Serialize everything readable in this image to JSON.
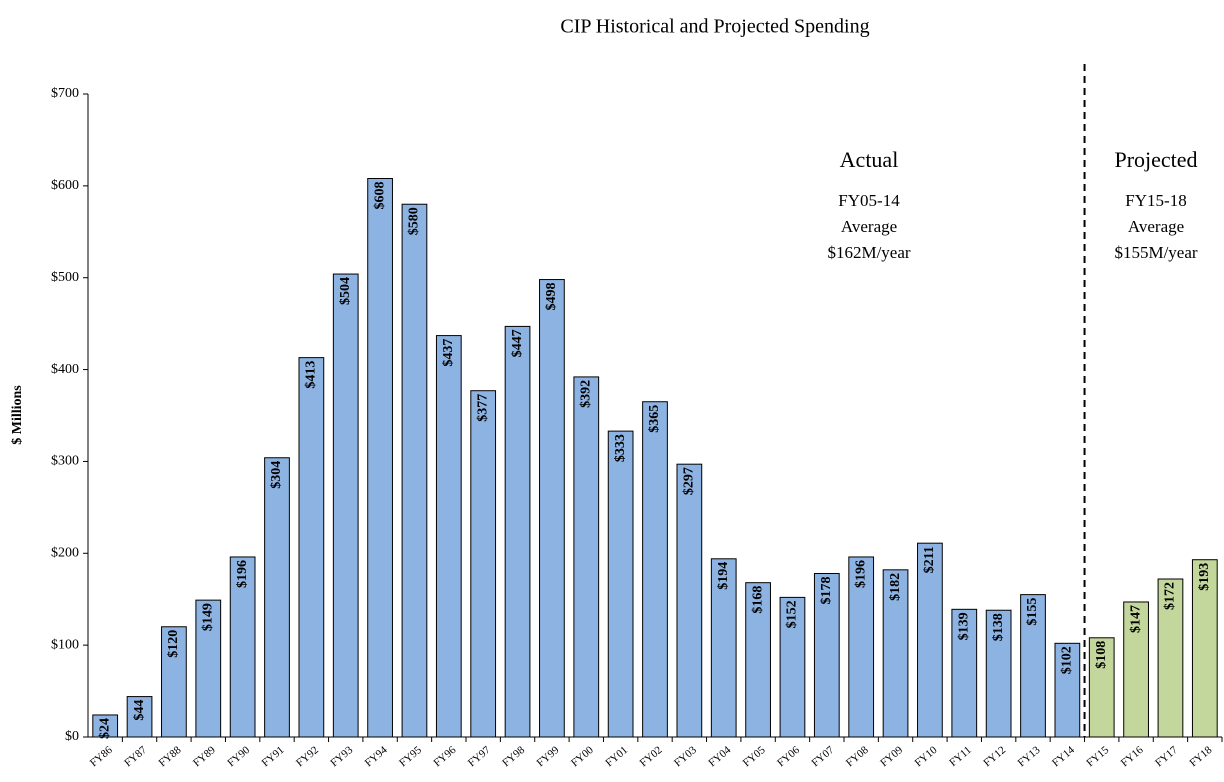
{
  "chart_data": {
    "type": "bar",
    "title": "CIP Historical and Projected Spending",
    "ylabel": "$ Millions",
    "categories": [
      "FY86",
      "FY87",
      "FY88",
      "FY89",
      "FY90",
      "FY91",
      "FY92",
      "FY93",
      "FY94",
      "FY95",
      "FY96",
      "FY97",
      "FY98",
      "FY99",
      "FY00",
      "FY01",
      "FY02",
      "FY03",
      "FY04",
      "FY05",
      "FY06",
      "FY07",
      "FY08",
      "FY09",
      "FY10",
      "FY11",
      "FY12",
      "FY13",
      "FY14",
      "FY15",
      "FY16",
      "FY17",
      "FY18"
    ],
    "values": [
      24,
      44,
      120,
      149,
      196,
      304,
      413,
      504,
      608,
      580,
      437,
      377,
      447,
      498,
      392,
      333,
      365,
      297,
      194,
      168,
      152,
      178,
      196,
      182,
      211,
      139,
      138,
      155,
      102,
      108,
      147,
      172,
      193
    ],
    "value_labels": [
      "$24",
      "$44",
      "$120",
      "$149",
      "$196",
      "$304",
      "$413",
      "$504",
      "$608",
      "$580",
      "$437",
      "$377",
      "$447",
      "$498",
      "$392",
      "$333",
      "$365",
      "$297",
      "$194",
      "$168",
      "$152",
      "$178",
      "$196",
      "$182",
      "$211",
      "$139",
      "$138",
      "$155",
      "$102",
      "$108",
      "$147",
      "$172",
      "$193"
    ],
    "colors": [
      "#8db3e2",
      "#8db3e2",
      "#8db3e2",
      "#8db3e2",
      "#8db3e2",
      "#8db3e2",
      "#8db3e2",
      "#8db3e2",
      "#8db3e2",
      "#8db3e2",
      "#8db3e2",
      "#8db3e2",
      "#8db3e2",
      "#8db3e2",
      "#8db3e2",
      "#8db3e2",
      "#8db3e2",
      "#8db3e2",
      "#8db3e2",
      "#8db3e2",
      "#8db3e2",
      "#8db3e2",
      "#8db3e2",
      "#8db3e2",
      "#8db3e2",
      "#8db3e2",
      "#8db3e2",
      "#8db3e2",
      "#8db3e2",
      "#c3d69b",
      "#c3d69b",
      "#c3d69b",
      "#c3d69b"
    ],
    "ylim": [
      0,
      700
    ],
    "yticks": [
      {
        "value": 0,
        "label": "$0"
      },
      {
        "value": 100,
        "label": "$100"
      },
      {
        "value": 200,
        "label": "$200"
      },
      {
        "value": 300,
        "label": "$300"
      },
      {
        "value": 400,
        "label": "$400"
      },
      {
        "value": 500,
        "label": "$500"
      },
      {
        "value": 600,
        "label": "$600"
      },
      {
        "value": 700,
        "label": "$700"
      }
    ],
    "annotations": {
      "actual": [
        "Actual",
        "FY05-14",
        "Average",
        "$162M/year"
      ],
      "projected": [
        "Projected",
        "FY15-18",
        "Average",
        "$155M/year"
      ]
    }
  }
}
